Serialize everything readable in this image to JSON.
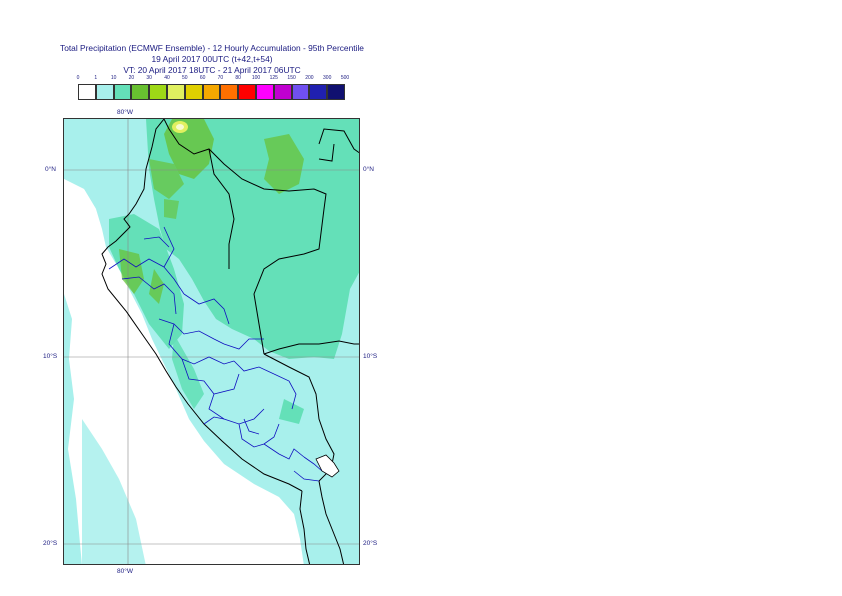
{
  "title": {
    "line1": "Total Precipitation (ECMWF Ensemble) - 12 Hourly Accumulation - 95th Percentile",
    "line2": "19 April 2017 00UTC (t+42,t+54)",
    "line3": "VT: 20 April 2017 18UTC - 21 April 2017 06UTC"
  },
  "legend": {
    "thresholds": [
      "0",
      "1",
      "10",
      "20",
      "30",
      "40",
      "50",
      "60",
      "70",
      "80",
      "100",
      "125",
      "150",
      "200",
      "300",
      "500"
    ],
    "colors": [
      "#ffffff",
      "#a8f0ec",
      "#64e0b8",
      "#68c030",
      "#9ed816",
      "#e0f060",
      "#e0d000",
      "#f5a800",
      "#ff7000",
      "#ff0000",
      "#ff00ff",
      "#c000d0",
      "#7050f0",
      "#2020b0",
      "#101070"
    ]
  },
  "map": {
    "lat_labels_left": [
      "0°N",
      "10°S",
      "20°S"
    ],
    "lat_labels_right": [
      "0°N",
      "10°S",
      "20°S"
    ],
    "lon_label_top": "80°W",
    "lon_label_bottom": "80°W",
    "line_color_coast": "#000000",
    "line_color_admin": "#1010c0",
    "grid_color": "#888888"
  }
}
